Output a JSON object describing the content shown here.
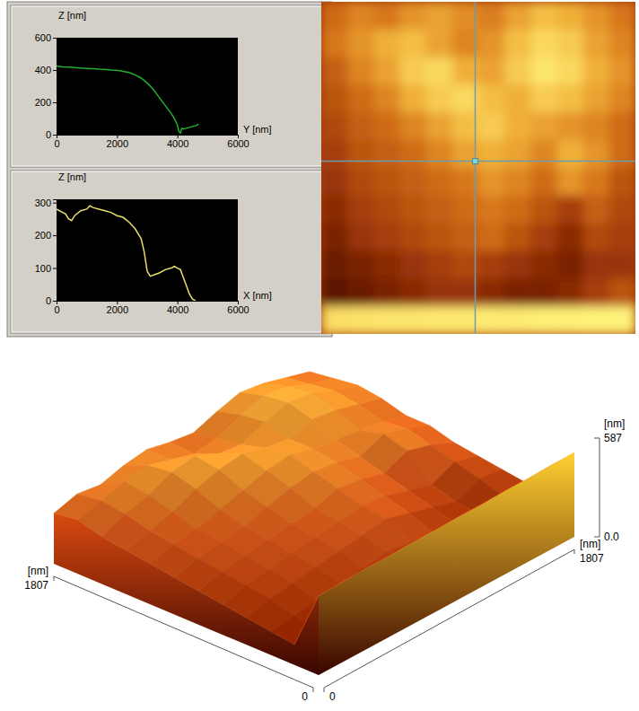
{
  "chart_data": [
    {
      "type": "line",
      "x_label": "Y [nm]",
      "y_label": "Z [nm]",
      "xlim": [
        0,
        6000
      ],
      "xticks": [
        0,
        2000,
        4000,
        6000
      ],
      "ylim": [
        0,
        600
      ],
      "yticks": [
        0,
        200,
        400,
        600
      ],
      "x": [
        0,
        200,
        400,
        600,
        800,
        1000,
        1200,
        1400,
        1600,
        1800,
        2000,
        2200,
        2400,
        2600,
        2800,
        3000,
        3200,
        3400,
        3600,
        3800,
        3900,
        4000,
        4050,
        4100,
        4150,
        4200,
        4400,
        4600,
        4700
      ],
      "series": [
        {
          "color": "#22b02e",
          "values": [
            425,
            420,
            418,
            415,
            412,
            410,
            408,
            405,
            404,
            400,
            398,
            392,
            385,
            370,
            350,
            320,
            280,
            230,
            180,
            130,
            100,
            60,
            20,
            10,
            40,
            35,
            45,
            55,
            65
          ]
        }
      ]
    },
    {
      "type": "line",
      "x_label": "X [nm]",
      "y_label": "Z [nm]",
      "xlim": [
        0,
        6000
      ],
      "xticks": [
        0,
        2000,
        4000,
        6000
      ],
      "ylim": [
        0,
        310
      ],
      "yticks": [
        0,
        100,
        200,
        300
      ],
      "x": [
        0,
        100,
        200,
        300,
        400,
        500,
        600,
        800,
        1000,
        1100,
        1200,
        1400,
        1600,
        1800,
        2000,
        2200,
        2400,
        2600,
        2800,
        2900,
        3000,
        3100,
        3200,
        3400,
        3600,
        3800,
        3900,
        4000,
        4100,
        4200,
        4300,
        4400,
        4500,
        4600
      ],
      "series": [
        {
          "color": "#e6df6a",
          "values": [
            280,
            275,
            270,
            265,
            250,
            245,
            260,
            275,
            280,
            290,
            285,
            280,
            275,
            270,
            260,
            255,
            240,
            220,
            190,
            150,
            90,
            75,
            78,
            85,
            95,
            100,
            105,
            100,
            95,
            70,
            45,
            20,
            5,
            0
          ]
        }
      ]
    },
    {
      "type": "heatmap",
      "cells": [
        [
          300,
          340,
          320,
          360,
          380,
          350,
          330,
          380,
          420,
          400,
          360,
          320
        ],
        [
          320,
          360,
          400,
          420,
          380,
          340,
          360,
          420,
          460,
          440,
          380,
          340
        ],
        [
          280,
          340,
          380,
          440,
          460,
          400,
          380,
          440,
          480,
          460,
          400,
          360
        ],
        [
          260,
          300,
          340,
          400,
          440,
          460,
          420,
          400,
          440,
          420,
          380,
          340
        ],
        [
          240,
          280,
          300,
          340,
          380,
          420,
          440,
          400,
          380,
          360,
          340,
          300
        ],
        [
          220,
          260,
          280,
          300,
          340,
          380,
          400,
          380,
          340,
          400,
          360,
          300
        ],
        [
          200,
          240,
          260,
          280,
          300,
          320,
          360,
          340,
          300,
          360,
          320,
          260
        ],
        [
          180,
          220,
          240,
          260,
          280,
          300,
          320,
          300,
          260,
          220,
          280,
          240
        ],
        [
          160,
          200,
          220,
          240,
          260,
          280,
          300,
          260,
          220,
          180,
          240,
          220
        ],
        [
          140,
          160,
          180,
          200,
          220,
          240,
          220,
          200,
          180,
          160,
          200,
          200
        ],
        [
          120,
          140,
          160,
          180,
          200,
          200,
          180,
          160,
          160,
          180,
          220,
          260
        ],
        [
          470,
          475,
          480,
          480,
          485,
          485,
          490,
          490,
          495,
          495,
          500,
          500
        ]
      ]
    },
    {
      "type": "surface",
      "x_label": "[nm]",
      "y_label": "[nm]",
      "z_label": "[nm]",
      "xlim": [
        0,
        1807
      ],
      "xticks": [
        0,
        1807
      ],
      "ylim": [
        0,
        1807
      ],
      "yticks": [
        0,
        1807
      ],
      "zlim": [
        0,
        587
      ],
      "zticks": [
        {
          "value": 0,
          "label": "0.0"
        },
        587
      ],
      "cells": [
        [
          300,
          340,
          320,
          360,
          380,
          350,
          330,
          380,
          420,
          400,
          360,
          320
        ],
        [
          320,
          360,
          400,
          420,
          380,
          340,
          360,
          420,
          460,
          440,
          380,
          340
        ],
        [
          280,
          340,
          380,
          440,
          460,
          400,
          380,
          440,
          480,
          460,
          400,
          360
        ],
        [
          260,
          300,
          340,
          400,
          440,
          460,
          420,
          400,
          440,
          420,
          380,
          340
        ],
        [
          240,
          280,
          300,
          340,
          380,
          420,
          440,
          400,
          380,
          360,
          340,
          300
        ],
        [
          220,
          260,
          280,
          300,
          340,
          380,
          400,
          380,
          340,
          400,
          360,
          300
        ],
        [
          200,
          240,
          260,
          280,
          300,
          320,
          360,
          340,
          300,
          360,
          320,
          260
        ],
        [
          180,
          220,
          240,
          260,
          280,
          300,
          320,
          300,
          260,
          220,
          280,
          240
        ],
        [
          160,
          200,
          220,
          240,
          260,
          280,
          300,
          260,
          220,
          180,
          240,
          220
        ],
        [
          140,
          160,
          180,
          200,
          220,
          240,
          220,
          200,
          180,
          160,
          200,
          200
        ],
        [
          120,
          140,
          160,
          180,
          200,
          200,
          180,
          160,
          160,
          180,
          220,
          260
        ],
        [
          470,
          475,
          480,
          480,
          485,
          485,
          490,
          490,
          495,
          495,
          500,
          500
        ]
      ]
    }
  ]
}
